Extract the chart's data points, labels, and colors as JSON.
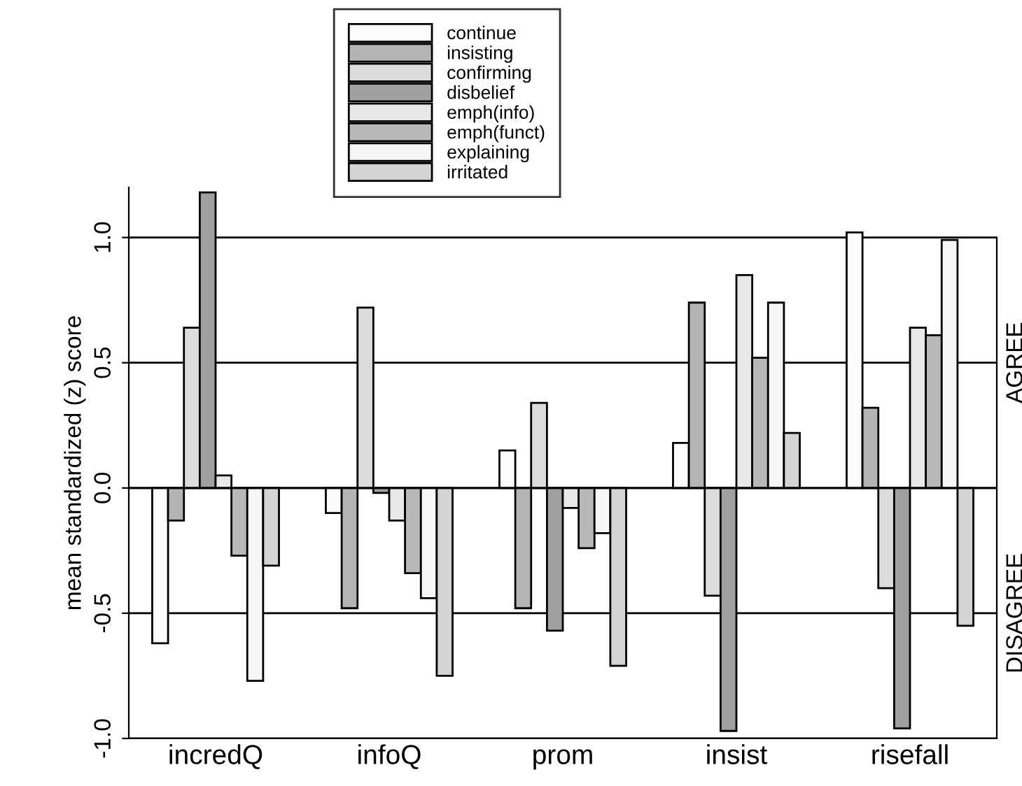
{
  "chart_data": {
    "type": "bar",
    "ylabel": "mean standardized (z) score",
    "categories": [
      "incredQ",
      "infoQ",
      "prom",
      "insist",
      "risefall"
    ],
    "series": [
      {
        "name": "continue",
        "color": "#fcfcfc",
        "values": [
          -0.62,
          -0.1,
          0.15,
          0.18,
          1.02
        ]
      },
      {
        "name": "insisting",
        "color": "#b4b4b4",
        "values": [
          -0.13,
          -0.48,
          -0.48,
          0.74,
          0.32
        ]
      },
      {
        "name": "confirming",
        "color": "#dcdcdc",
        "values": [
          0.64,
          0.72,
          0.34,
          -0.43,
          -0.4
        ]
      },
      {
        "name": "disbelief",
        "color": "#a0a0a0",
        "values": [
          1.18,
          -0.02,
          -0.57,
          -0.97,
          -0.96
        ]
      },
      {
        "name": "emph(info)",
        "color": "#e8e8e8",
        "values": [
          0.05,
          -0.13,
          -0.08,
          0.85,
          0.64
        ]
      },
      {
        "name": "emph(funct)",
        "color": "#b8b8b8",
        "values": [
          -0.27,
          -0.34,
          -0.24,
          0.52,
          0.61
        ]
      },
      {
        "name": "explaining",
        "color": "#f6f6f6",
        "values": [
          -0.77,
          -0.44,
          -0.18,
          0.74,
          0.99
        ]
      },
      {
        "name": "irritated",
        "color": "#d4d4d4",
        "values": [
          -0.31,
          -0.75,
          -0.71,
          0.22,
          -0.55
        ]
      }
    ],
    "ylim": [
      -1.0,
      1.2
    ],
    "yticks": [
      {
        "value": -1.0,
        "label": "-1.0"
      },
      {
        "value": -0.5,
        "label": "-0.5"
      },
      {
        "value": 0.0,
        "label": "0.0"
      },
      {
        "value": 0.5,
        "label": "0.5"
      },
      {
        "value": 1.0,
        "label": "1.0"
      }
    ],
    "grid": "y",
    "legend": "top",
    "annotations": [
      "AGREE",
      "DISAGREE"
    ]
  }
}
